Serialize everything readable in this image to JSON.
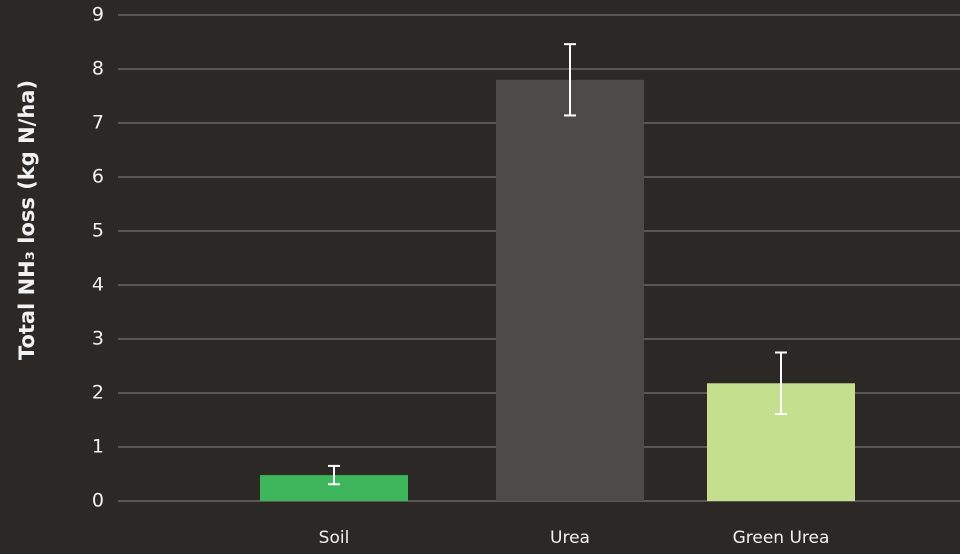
{
  "chart_data": {
    "type": "bar",
    "ylabel": "Total NH₃ loss (kg N/ha)",
    "categories": [
      "Soil",
      "Urea",
      "Green Urea"
    ],
    "values": [
      0.48,
      7.8,
      2.18
    ],
    "errors": [
      0.17,
      0.66,
      0.57
    ],
    "colors": [
      "#3db55a",
      "#4d4a47",
      "#c4df8e"
    ],
    "ylim": [
      0,
      9
    ],
    "yticks": [
      0,
      1,
      2,
      3,
      4,
      5,
      6,
      7,
      8,
      9
    ],
    "grid": true
  }
}
